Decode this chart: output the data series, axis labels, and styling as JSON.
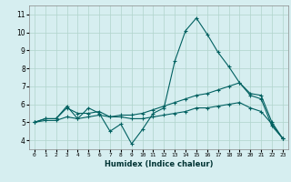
{
  "xlabel": "Humidex (Indice chaleur)",
  "ylabel": "",
  "background_color": "#d6eef0",
  "grid_color": "#b0d4cc",
  "line_color": "#006060",
  "x_values": [
    0,
    1,
    2,
    3,
    4,
    5,
    6,
    7,
    8,
    9,
    10,
    11,
    12,
    13,
    14,
    15,
    16,
    17,
    18,
    19,
    20,
    21,
    22,
    23
  ],
  "line1": [
    5.0,
    5.2,
    5.2,
    5.9,
    5.2,
    5.8,
    5.5,
    4.5,
    4.9,
    3.8,
    4.6,
    5.5,
    5.8,
    8.4,
    10.1,
    10.8,
    9.9,
    8.9,
    8.1,
    7.2,
    6.5,
    6.3,
    4.8,
    4.1
  ],
  "line2": [
    5.0,
    5.2,
    5.2,
    5.8,
    5.5,
    5.5,
    5.6,
    5.3,
    5.4,
    5.4,
    5.5,
    5.7,
    5.9,
    6.1,
    6.3,
    6.5,
    6.6,
    6.8,
    7.0,
    7.2,
    6.6,
    6.5,
    5.0,
    4.1
  ],
  "line3": [
    5.0,
    5.1,
    5.1,
    5.3,
    5.2,
    5.3,
    5.4,
    5.3,
    5.3,
    5.2,
    5.2,
    5.3,
    5.4,
    5.5,
    5.6,
    5.8,
    5.8,
    5.9,
    6.0,
    6.1,
    5.8,
    5.6,
    4.9,
    4.1
  ],
  "ylim": [
    3.5,
    11.5
  ],
  "yticks": [
    4,
    5,
    6,
    7,
    8,
    9,
    10,
    11
  ],
  "xlim": [
    -0.5,
    23.5
  ]
}
